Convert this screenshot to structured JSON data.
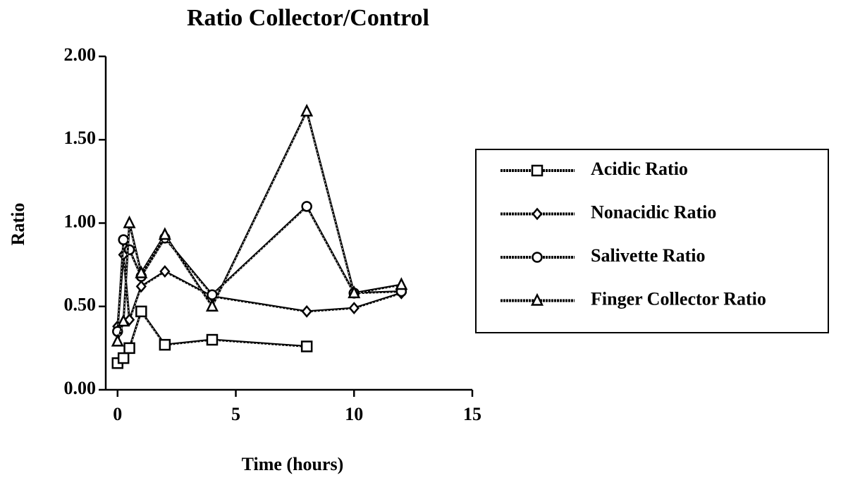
{
  "chart_data": {
    "type": "line",
    "title": "Ratio Collector/Control",
    "x_label": "Time (hours)",
    "y_label": "Ratio",
    "xlim": [
      -0.5,
      15
    ],
    "xticks": [
      0,
      5,
      10,
      15
    ],
    "ylim": [
      0,
      2
    ],
    "yticks": [
      {
        "value": 0,
        "label": "0.00"
      },
      {
        "value": 0.5,
        "label": "0.50"
      },
      {
        "value": 1,
        "label": "1.00"
      },
      {
        "value": 1.5,
        "label": "1.50"
      },
      {
        "value": 2,
        "label": "2.00"
      }
    ],
    "grid": false,
    "legend": "right",
    "series": [
      {
        "name": "Acidic Ratio",
        "color": "#000000",
        "marker": "square",
        "x": [
          0,
          0.25,
          0.5,
          1,
          2,
          4,
          8
        ],
        "values": [
          0.16,
          0.19,
          0.25,
          0.47,
          0.27,
          0.3,
          0.26
        ]
      },
      {
        "name": "Nonacidic Ratio",
        "color": "#000000",
        "marker": "diamond",
        "x": [
          0,
          0.25,
          0.5,
          1,
          2,
          4,
          8,
          10,
          12
        ],
        "values": [
          0.38,
          0.81,
          0.42,
          0.62,
          0.71,
          0.56,
          0.47,
          0.49,
          0.58
        ]
      },
      {
        "name": "Salivette Ratio",
        "color": "#000000",
        "marker": "circle",
        "x": [
          0,
          0.25,
          0.5,
          1,
          2,
          4,
          8,
          10,
          12
        ],
        "values": [
          0.35,
          0.9,
          0.84,
          0.68,
          0.91,
          0.57,
          1.1,
          0.58,
          0.59
        ]
      },
      {
        "name": "Finger Collector Ratio",
        "color": "#000000",
        "marker": "triangle",
        "x": [
          0,
          0.25,
          0.5,
          1,
          2,
          4,
          8,
          10,
          12
        ],
        "values": [
          0.29,
          0.41,
          1.0,
          0.7,
          0.93,
          0.5,
          1.67,
          0.58,
          0.63
        ]
      }
    ]
  }
}
